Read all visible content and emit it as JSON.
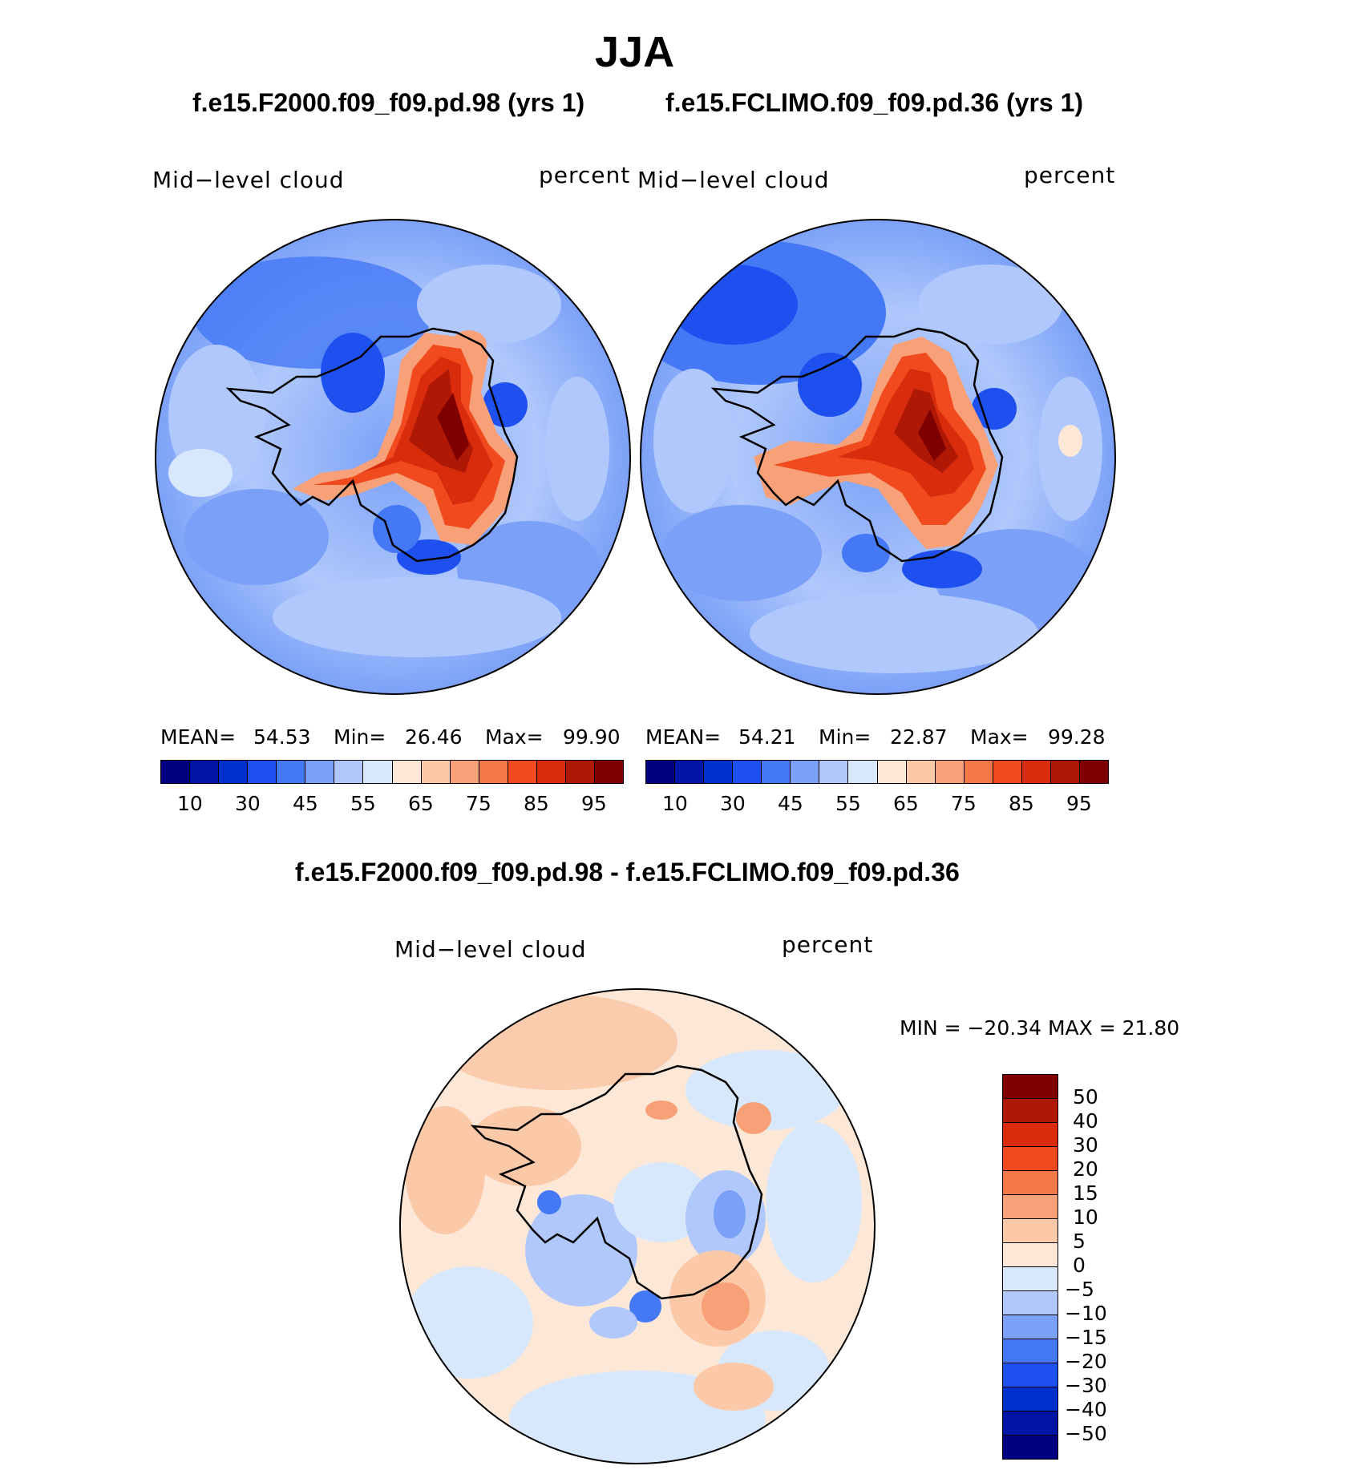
{
  "figure": {
    "season": "JJA",
    "case1_title": "f.e15.F2000.f09_f09.pd.98 (yrs 1)",
    "case2_title": "f.e15.FCLIMO.f09_f09.pd.36 (yrs 1)",
    "diff_title": "f.e15.F2000.f09_f09.pd.98 - f.e15.FCLIMO.f09_f09.pd.36"
  },
  "panels": [
    {
      "variable": "Mid−level  cloud",
      "units": "percent",
      "mean_label": "MEAN=",
      "mean_value": "54.53",
      "min_label": "Min=",
      "min_value": "26.46",
      "max_label": "Max=",
      "max_value": "99.90"
    },
    {
      "variable": "Mid−level  cloud",
      "units": "percent",
      "mean_label": "MEAN=",
      "mean_value": "54.21",
      "min_label": "Min=",
      "min_value": "22.87",
      "max_label": "Max=",
      "max_value": "99.28"
    }
  ],
  "diff_panel": {
    "variable": "Mid−level  cloud",
    "units": "percent",
    "minmax_text": "MIN = −20.34 MAX =   21.80"
  },
  "colorbar_abs": {
    "colors": [
      "#000080",
      "#0014a6",
      "#0030cc",
      "#1e50f0",
      "#4478f5",
      "#7aa0f8",
      "#b0c8fb",
      "#d8e8fc",
      "#fde8d8",
      "#fbc8a8",
      "#f8a078",
      "#f57848",
      "#f04a1e",
      "#d82c0c",
      "#b01806",
      "#800000"
    ],
    "tick_labels": [
      "10",
      "30",
      "45",
      "55",
      "65",
      "75",
      "85",
      "95"
    ]
  },
  "colorbar_diff": {
    "colors": [
      "#800000",
      "#b01806",
      "#d82c0c",
      "#f04a1e",
      "#f57848",
      "#f8a078",
      "#fbc8a8",
      "#fde8d8",
      "#d8e8fc",
      "#b0c8fb",
      "#7aa0f8",
      "#4478f5",
      "#1e50f0",
      "#0030cc",
      "#0014a6",
      "#000080"
    ],
    "tick_labels": [
      "50",
      "40",
      "30",
      "20",
      "15",
      "10",
      "5",
      "0",
      "−5",
      "−10",
      "−15",
      "−20",
      "−30",
      "−40",
      "−50"
    ]
  }
}
